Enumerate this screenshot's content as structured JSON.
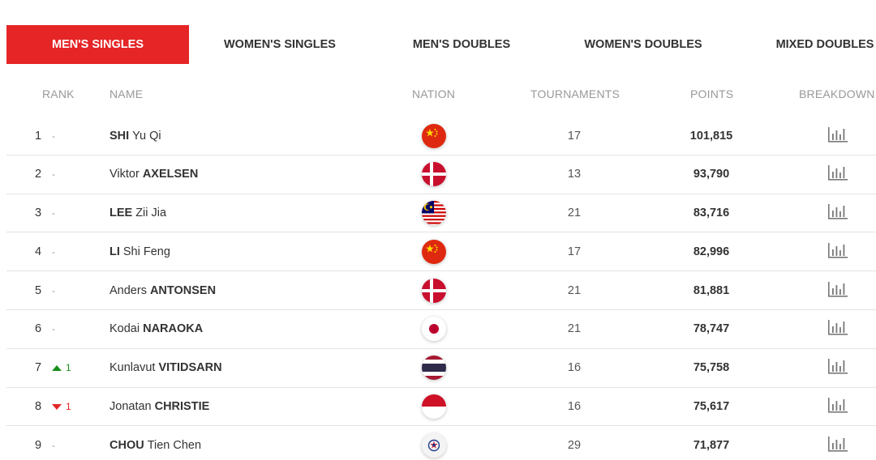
{
  "tabs": [
    {
      "label": "MEN'S SINGLES",
      "active": true
    },
    {
      "label": "WOMEN'S SINGLES",
      "active": false
    },
    {
      "label": "MEN'S DOUBLES",
      "active": false
    },
    {
      "label": "WOMEN'S DOUBLES",
      "active": false
    },
    {
      "label": "MIXED DOUBLES",
      "active": false
    }
  ],
  "columns": {
    "rank": "RANK",
    "name": "NAME",
    "nation": "NATION",
    "tournaments": "TOURNAMENTS",
    "points": "POINTS",
    "breakdown": "BREAKDOWN"
  },
  "rows": [
    {
      "rank": "1",
      "move": "none",
      "move_text": "-",
      "first": "",
      "surname": "SHI",
      "given": "Yu Qi",
      "surname_first": true,
      "flag": "china-flag-icon",
      "tournaments": "17",
      "points": "101,815"
    },
    {
      "rank": "2",
      "move": "none",
      "move_text": "-",
      "first": "Viktor",
      "surname": "AXELSEN",
      "given": "",
      "surname_first": false,
      "flag": "denmark-flag-icon",
      "tournaments": "13",
      "points": "93,790"
    },
    {
      "rank": "3",
      "move": "none",
      "move_text": "-",
      "first": "",
      "surname": "LEE",
      "given": "Zii Jia",
      "surname_first": true,
      "flag": "malaysia-flag-icon",
      "tournaments": "21",
      "points": "83,716"
    },
    {
      "rank": "4",
      "move": "none",
      "move_text": "-",
      "first": "",
      "surname": "LI",
      "given": "Shi Feng",
      "surname_first": true,
      "flag": "china-flag-icon",
      "tournaments": "17",
      "points": "82,996"
    },
    {
      "rank": "5",
      "move": "none",
      "move_text": "-",
      "first": "Anders",
      "surname": "ANTONSEN",
      "given": "",
      "surname_first": false,
      "flag": "denmark-flag-icon",
      "tournaments": "21",
      "points": "81,881"
    },
    {
      "rank": "6",
      "move": "none",
      "move_text": "-",
      "first": "Kodai",
      "surname": "NARAOKA",
      "given": "",
      "surname_first": false,
      "flag": "japan-flag-icon",
      "tournaments": "21",
      "points": "78,747"
    },
    {
      "rank": "7",
      "move": "up",
      "move_text": "1",
      "first": "Kunlavut",
      "surname": "VITIDSARN",
      "given": "",
      "surname_first": false,
      "flag": "thailand-flag-icon",
      "tournaments": "16",
      "points": "75,758"
    },
    {
      "rank": "8",
      "move": "down",
      "move_text": "1",
      "first": "Jonatan",
      "surname": "CHRISTIE",
      "given": "",
      "surname_first": false,
      "flag": "indonesia-flag-icon",
      "tournaments": "16",
      "points": "75,617"
    },
    {
      "rank": "9",
      "move": "none",
      "move_text": "-",
      "first": "",
      "surname": "CHOU",
      "given": "Tien Chen",
      "surname_first": true,
      "flag": "chinese-taipei-flag-icon",
      "tournaments": "29",
      "points": "71,877"
    }
  ],
  "colors": {
    "accent": "#e52526",
    "up": "#1a8f1a",
    "down": "#e52526"
  }
}
